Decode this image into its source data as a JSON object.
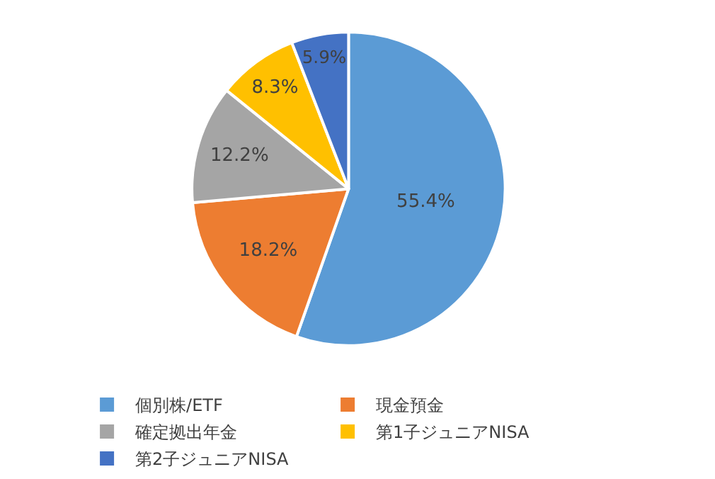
{
  "chart_data": {
    "type": "pie",
    "categories": [
      "個別株/ETF",
      "現金預金",
      "確定拠出年金",
      "第1子ジュニアNISA",
      "第2子ジュニアNISA"
    ],
    "values": [
      55.4,
      18.2,
      12.2,
      8.3,
      5.9
    ],
    "colors": [
      "#5b9bd5",
      "#ed7d31",
      "#a5a5a5",
      "#ffc000",
      "#4472c4"
    ],
    "value_labels": [
      "55.4%",
      "18.2%",
      "12.2%",
      "8.3%",
      "5.9%"
    ],
    "legend": "bottom"
  }
}
